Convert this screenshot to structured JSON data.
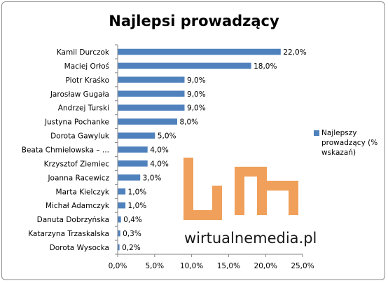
{
  "chart_data": {
    "type": "bar",
    "orientation": "horizontal",
    "title": "Najlepsi prowadzący",
    "categories": [
      "Kamil Durczok",
      "Maciej Orłoś",
      "Piotr Kraśko",
      "Jarosław Gugała",
      "Andrzej Turski",
      "Justyna Pochanke",
      "Dorota Gawyluk",
      "Beata Chmielowska – ...",
      "Krzysztof Ziemiec",
      "Joanna Racewicz",
      "Marta Kielczyk",
      "Michał Adamczyk",
      "Danuta Dobrzyńska",
      "Katarzyna Trzaskalska",
      "Dorota Wysocka"
    ],
    "series": [
      {
        "name": "Najlepszy prowadzący (% wskazań)",
        "values": [
          22.0,
          18.0,
          9.0,
          9.0,
          9.0,
          8.0,
          5.0,
          4.0,
          4.0,
          3.0,
          1.0,
          1.0,
          0.4,
          0.3,
          0.2
        ],
        "value_labels": [
          "22,0%",
          "18,0%",
          "9,0%",
          "9,0%",
          "9,0%",
          "8,0%",
          "5,0%",
          "4,0%",
          "4,0%",
          "3,0%",
          "1,0%",
          "1,0%",
          "0,4%",
          "0,3%",
          "0,2%"
        ],
        "color": "#4f81bd"
      }
    ],
    "xlim": [
      0,
      25
    ],
    "x_ticks": [
      "0,0%",
      "5,0%",
      "10,0%",
      "15,0%",
      "20,0%",
      "25,0%"
    ],
    "grid": false,
    "legend_position": "right"
  },
  "watermark": {
    "text_main": "wirtualnemedia",
    "text_dot": ".",
    "text_tld": "pl",
    "color": "#f0a05a"
  }
}
